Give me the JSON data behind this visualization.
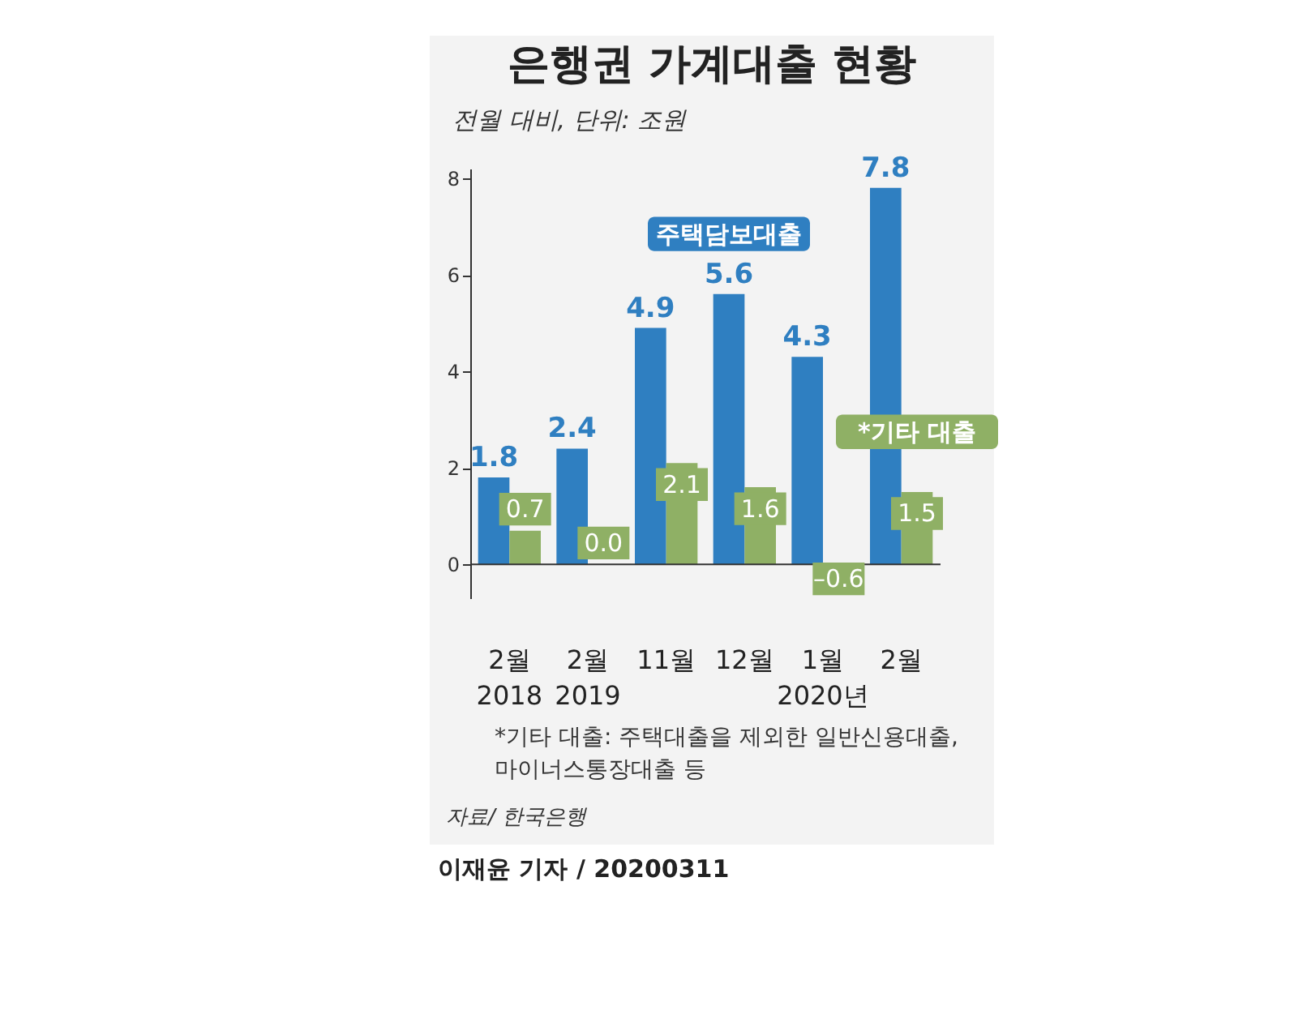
{
  "chart_data": {
    "type": "bar",
    "title": "은행권 가계대출 현황",
    "subtitle": "전월 대비, 단위: 조원",
    "categories": [
      "2월\n2018",
      "2월\n2019",
      "11월",
      "12월",
      "1월\n2020년",
      "2월"
    ],
    "series": [
      {
        "name": "주택담보대출",
        "color": "#2f7fc1",
        "values": [
          1.8,
          2.4,
          4.9,
          5.6,
          4.3,
          7.8
        ],
        "value_labels": [
          "1.8",
          "2.4",
          "4.9",
          "5.6",
          "4.3",
          "7.8"
        ]
      },
      {
        "name": "*기타 대출",
        "color": "#8fb065",
        "values": [
          0.7,
          0.0,
          2.1,
          1.6,
          -0.6,
          1.5
        ],
        "value_labels": [
          "0.7",
          "0.0",
          "2.1",
          "1.6",
          "–0.6",
          "1.5"
        ]
      }
    ],
    "ylim": [
      -0.7,
      8.2
    ],
    "yticks": [
      0,
      2,
      4,
      6,
      8
    ],
    "grid": false,
    "legend": false,
    "ref_lines": [
      {
        "axis": "y",
        "value": 0
      }
    ],
    "annotations": [
      "*기타 대출: 주택대출을 제외한 일반신용대출, 마이너스통장대출 등",
      "자료/ 한국은행",
      "이재윤 기자 / 20200311"
    ]
  }
}
